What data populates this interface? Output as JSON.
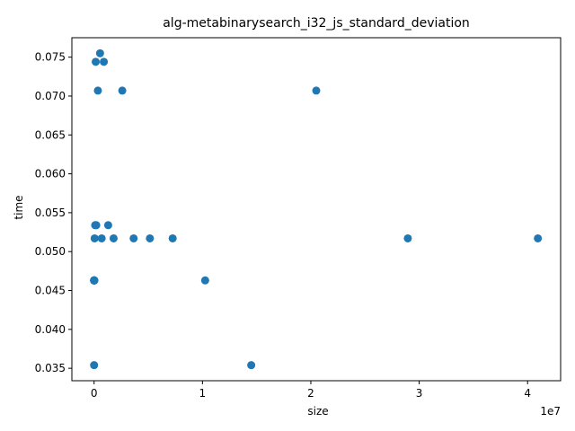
{
  "chart_data": {
    "type": "scatter",
    "title": "alg-metabinarysearch_i32_js_standard_deviation",
    "xlabel": "size",
    "ylabel": "time",
    "x_offset_label": "1e7",
    "xlim": [
      -2050000,
      43050000
    ],
    "ylim": [
      0.0334,
      0.0775
    ],
    "x_ticks": [
      0,
      10000000,
      20000000,
      30000000,
      40000000
    ],
    "x_tick_labels": [
      "0",
      "1",
      "2",
      "3",
      "4"
    ],
    "y_ticks": [
      0.035,
      0.04,
      0.045,
      0.05,
      0.055,
      0.06,
      0.065,
      0.07,
      0.075
    ],
    "y_tick_labels": [
      "0.035",
      "0.040",
      "0.045",
      "0.050",
      "0.055",
      "0.060",
      "0.065",
      "0.070",
      "0.075"
    ],
    "grid": false,
    "marker_color": "#1f77b4",
    "points": [
      {
        "x": 100,
        "y": 0.0354
      },
      {
        "x": 200,
        "y": 0.0463
      },
      {
        "x": 400,
        "y": 0.0463
      },
      {
        "x": 800,
        "y": 0.0463
      },
      {
        "x": 1600,
        "y": 0.0463
      },
      {
        "x": 3200,
        "y": 0.0463
      },
      {
        "x": 6400,
        "y": 0.0463
      },
      {
        "x": 12800,
        "y": 0.0463
      },
      {
        "x": 25600,
        "y": 0.0463
      },
      {
        "x": 50000,
        "y": 0.0517
      },
      {
        "x": 100000,
        "y": 0.0534
      },
      {
        "x": 150000,
        "y": 0.0744
      },
      {
        "x": 200000,
        "y": 0.0534
      },
      {
        "x": 350000,
        "y": 0.0707
      },
      {
        "x": 550000,
        "y": 0.0755
      },
      {
        "x": 700000,
        "y": 0.0517
      },
      {
        "x": 900000,
        "y": 0.0744
      },
      {
        "x": 1300000,
        "y": 0.0534
      },
      {
        "x": 1800000,
        "y": 0.0517
      },
      {
        "x": 2600000,
        "y": 0.0707
      },
      {
        "x": 3650000,
        "y": 0.0517
      },
      {
        "x": 5150000,
        "y": 0.0517
      },
      {
        "x": 7250000,
        "y": 0.0517
      },
      {
        "x": 10250000,
        "y": 0.0463
      },
      {
        "x": 14500000,
        "y": 0.0354
      },
      {
        "x": 20500000,
        "y": 0.0707
      },
      {
        "x": 28950000,
        "y": 0.0517
      },
      {
        "x": 40950000,
        "y": 0.0517
      }
    ]
  }
}
